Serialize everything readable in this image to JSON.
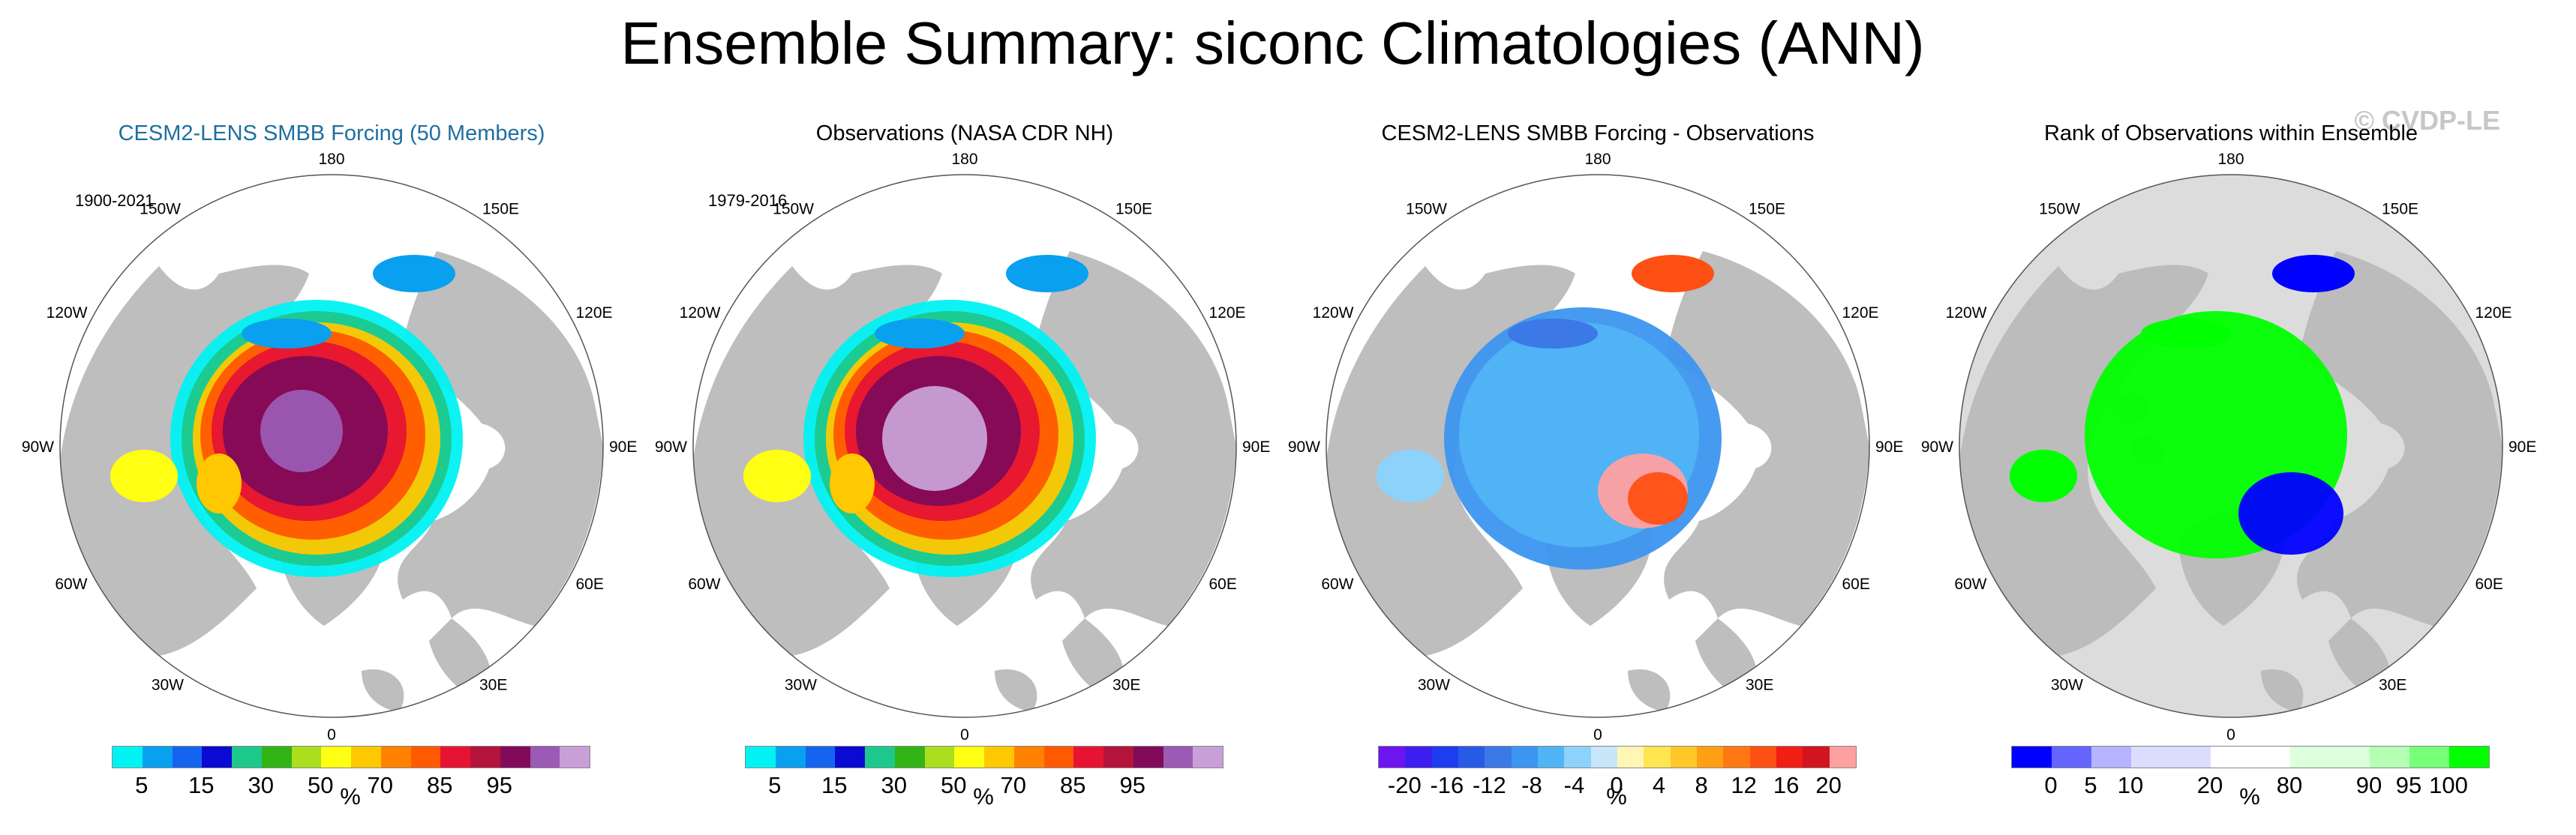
{
  "figure": {
    "title": "Ensemble Summary: siconc Climatologies (ANN)",
    "watermark": "© CVDP-LE"
  },
  "longitude_labels": {
    "top": "180",
    "bottom": "0",
    "left": "90W",
    "right": "90E",
    "upper_left_1": "150W",
    "upper_left_2": "120W",
    "lower_left_1": "60W",
    "lower_left_2": "30W",
    "upper_right_1": "150E",
    "upper_right_2": "120E",
    "lower_right_1": "60E",
    "lower_right_2": "30E"
  },
  "colors": {
    "ocean": "#ffffff",
    "land": "#bebebe",
    "land_light": "#dcdcdc",
    "title_blue": "#1f6fa0"
  },
  "panels": [
    {
      "title": "CESM2-LENS SMBB Forcing (50 Members)",
      "period": "1900-2021",
      "colorbar": {
        "unit": "%",
        "colors": [
          "#00f2f2",
          "#0aa0f0",
          "#1464f0",
          "#0a0ad2",
          "#1ec88c",
          "#32b414",
          "#aade1e",
          "#ffff14",
          "#ffc800",
          "#ff8200",
          "#ff5a00",
          "#e61432",
          "#b4143c",
          "#820a5a",
          "#9b5ab4",
          "#c8a0d7"
        ],
        "tick_labels": [
          "5",
          "15",
          "30",
          "50",
          "70",
          "85",
          "95"
        ]
      }
    },
    {
      "title": "Observations (NASA CDR NH)",
      "period": "1979-2016",
      "colorbar": {
        "unit": "%",
        "colors": [
          "#00f2f2",
          "#0aa0f0",
          "#1464f0",
          "#0a0ad2",
          "#1ec88c",
          "#32b414",
          "#aade1e",
          "#ffff14",
          "#ffc800",
          "#ff8200",
          "#ff5a00",
          "#e61432",
          "#b4143c",
          "#820a5a",
          "#9b5ab4",
          "#c8a0d7"
        ],
        "tick_labels": [
          "5",
          "15",
          "30",
          "50",
          "70",
          "85",
          "95"
        ]
      }
    },
    {
      "title": "CESM2-LENS SMBB Forcing - Observations",
      "period": "",
      "colorbar": {
        "unit": "%",
        "colors": [
          "#6e14f0",
          "#3c1ef0",
          "#1e3cf0",
          "#285ae6",
          "#3c78e6",
          "#3c96f0",
          "#50b4f5",
          "#8cd2fa",
          "#c8e6fa",
          "#fff5b4",
          "#ffe650",
          "#ffc828",
          "#ffa014",
          "#ff7814",
          "#ff5014",
          "#f01e14",
          "#d2141e",
          "#ffa0a0"
        ],
        "tick_labels": [
          "-20",
          "-16",
          "-12",
          "-8",
          "-4",
          "0",
          "4",
          "8",
          "12",
          "16",
          "20"
        ]
      }
    },
    {
      "title": "Rank of Observations within Ensemble",
      "period": "",
      "colorbar": {
        "unit": "%",
        "colors": [
          "#0000ff",
          "#6464ff",
          "#b4b4ff",
          "#dcdcff",
          "#dcdcff",
          "#ffffff",
          "#ffffff",
          "#dcffdc",
          "#dcffdc",
          "#b4ffb4",
          "#78ff78",
          "#00ff00"
        ],
        "tick_labels": [
          "0",
          "5",
          "10",
          "20",
          "80",
          "90",
          "95",
          "100"
        ]
      }
    }
  ]
}
